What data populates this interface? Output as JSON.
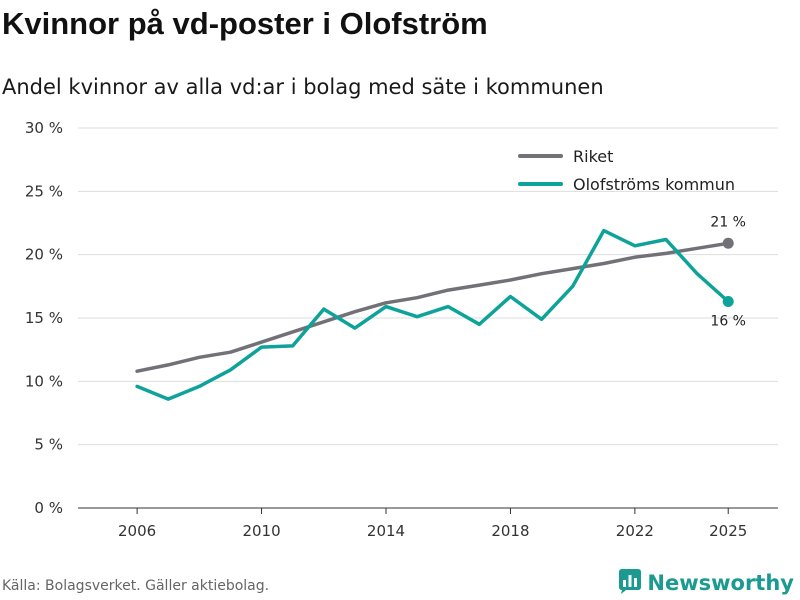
{
  "title": "Kvinnor på vd-poster i Olofström",
  "subtitle": "Andel kvinnor av alla vd:ar i bolag med säte i kommunen",
  "source": "Källa: Bolagsverket. Gäller aktiebolag.",
  "brand": {
    "name": "Newsworthy",
    "icon": "bar-chart-logo-icon"
  },
  "colors": {
    "riket": "#727178",
    "olofstrom": "#0ea39a",
    "grid": "#dddddd",
    "axis": "#333333",
    "brand": "#1a9a90"
  },
  "chart_data": {
    "type": "line",
    "title": "Kvinnor på vd-poster i Olofström",
    "xlabel": "",
    "ylabel": "",
    "x": [
      2006,
      2007,
      2008,
      2009,
      2010,
      2011,
      2012,
      2013,
      2014,
      2015,
      2016,
      2017,
      2018,
      2019,
      2020,
      2021,
      2022,
      2023,
      2024,
      2025
    ],
    "xlim": [
      2004.1,
      2026.6
    ],
    "ylim": [
      0,
      30
    ],
    "x_ticks": [
      2006,
      2010,
      2014,
      2018,
      2022,
      2025
    ],
    "y_ticks": [
      0,
      5,
      10,
      15,
      20,
      25,
      30
    ],
    "y_tick_labels": [
      "0 %",
      "5 %",
      "10 %",
      "15 %",
      "20 %",
      "25 %",
      "30 %"
    ],
    "grid": true,
    "legend_position": "top-right",
    "series": [
      {
        "name": "Riket",
        "color": "#727178",
        "values": [
          10.8,
          11.3,
          11.9,
          12.3,
          13.1,
          13.9,
          14.7,
          15.5,
          16.2,
          16.6,
          17.2,
          17.6,
          18.0,
          18.5,
          18.9,
          19.3,
          19.8,
          20.1,
          20.5,
          20.9
        ],
        "end_label": "21 %"
      },
      {
        "name": "Olofströms kommun",
        "color": "#0ea39a",
        "values": [
          9.6,
          8.6,
          9.6,
          10.9,
          12.7,
          12.8,
          15.7,
          14.2,
          15.9,
          15.1,
          15.9,
          14.5,
          16.7,
          14.9,
          17.5,
          21.9,
          20.7,
          21.2,
          18.5,
          16.3
        ],
        "end_label": "16 %"
      }
    ]
  }
}
